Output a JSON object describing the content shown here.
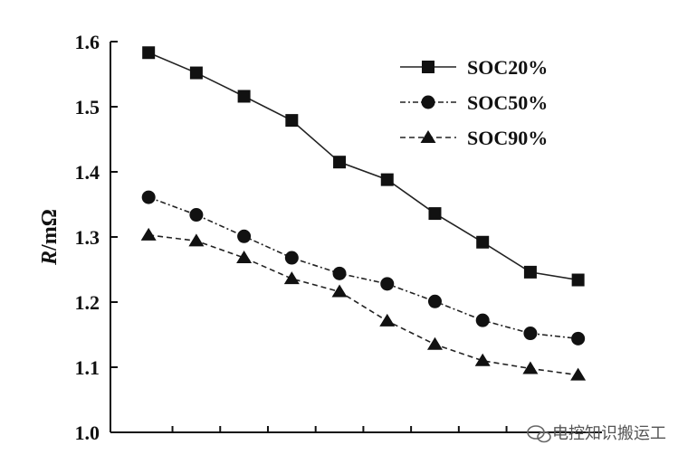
{
  "chart_data": {
    "type": "line",
    "ylabel_italic": "R",
    "ylabel_unit": "/mΩ",
    "ylim": [
      1.0,
      1.6
    ],
    "yticks": [
      "1.0",
      "1.1",
      "1.2",
      "1.3",
      "1.4",
      "1.5",
      "1.6"
    ],
    "x": [
      1,
      2,
      3,
      4,
      5,
      6,
      7,
      8,
      9,
      10
    ],
    "xlim": [
      0.2,
      10.5
    ],
    "grid": false,
    "legend_position": "top-right",
    "series": [
      {
        "name": "SOC20%",
        "marker": "square",
        "line": "solid",
        "values": [
          1.583,
          1.552,
          1.516,
          1.479,
          1.415,
          1.388,
          1.336,
          1.292,
          1.246,
          1.234
        ]
      },
      {
        "name": "SOC50%",
        "marker": "circle",
        "line": "dashdot",
        "values": [
          1.361,
          1.334,
          1.301,
          1.268,
          1.244,
          1.228,
          1.201,
          1.172,
          1.152,
          1.144
        ]
      },
      {
        "name": "SOC90%",
        "marker": "triangle",
        "line": "dashed",
        "values": [
          1.303,
          1.294,
          1.268,
          1.236,
          1.216,
          1.171,
          1.135,
          1.11,
          1.098,
          1.088
        ]
      }
    ]
  },
  "watermark": {
    "icon": "wechat-icon",
    "text": "电控知识搬运工"
  }
}
